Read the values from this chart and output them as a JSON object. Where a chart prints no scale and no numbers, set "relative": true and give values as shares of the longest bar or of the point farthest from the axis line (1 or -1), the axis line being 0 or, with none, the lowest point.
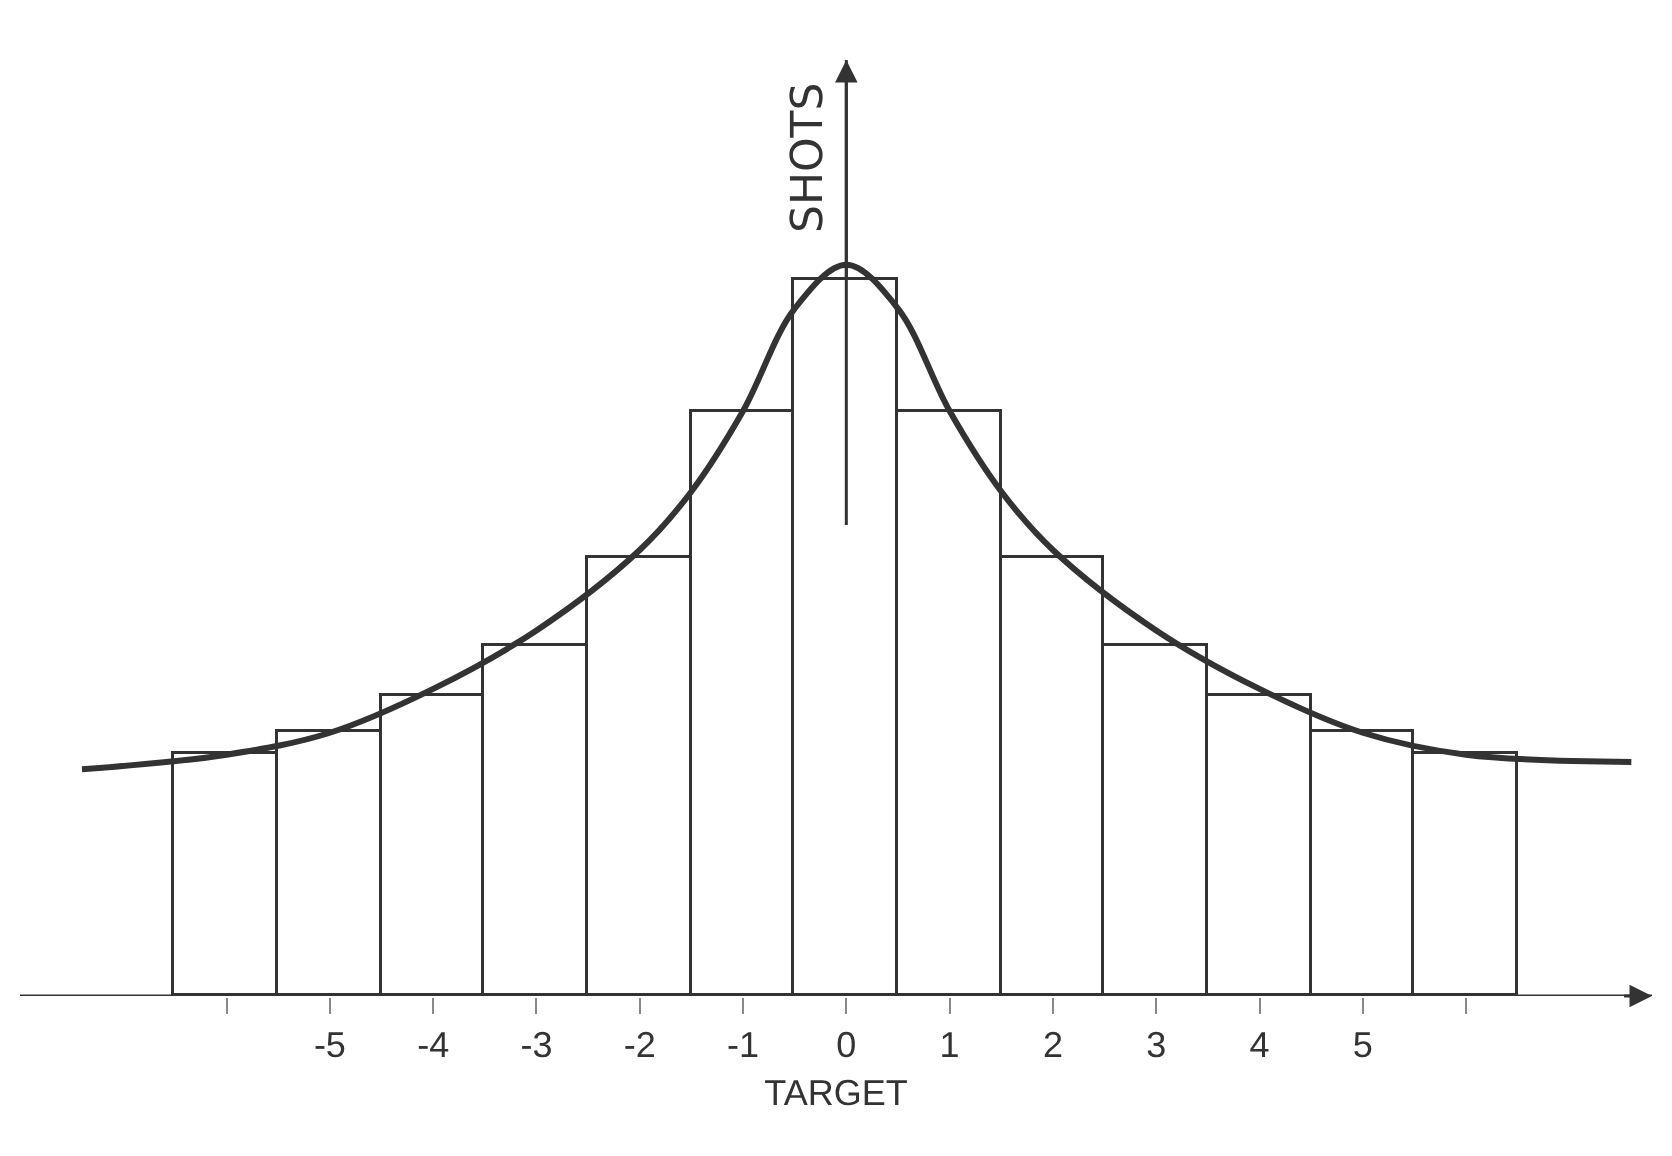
{
  "chart_data": {
    "type": "bar",
    "relative": true,
    "xlabel": "TARGET",
    "ylabel": "SHOTS",
    "x": [
      -6,
      -5,
      -4,
      -3,
      -2,
      -1,
      0,
      1,
      2,
      3,
      4,
      5,
      6
    ],
    "xlim": [
      -8,
      7.8
    ],
    "xticks": [
      {
        "value": -6,
        "label": null
      },
      -5,
      -4,
      -3,
      -2,
      -1,
      0,
      1,
      2,
      3,
      4,
      5,
      {
        "value": 6,
        "label": null
      }
    ],
    "series": [
      {
        "color": "#ffffff",
        "values": [
          0.33,
          0.36,
          0.41,
          0.48,
          0.6,
          0.8,
          0.98,
          0.8,
          0.6,
          0.48,
          0.41,
          0.36,
          0.33
        ]
      },
      {
        "type": "line",
        "color": "#333333",
        "x": [
          -7.4,
          -6,
          -5,
          -4,
          -3,
          -2,
          -1.5,
          -1,
          -0.5,
          0,
          0.5,
          1,
          1.5,
          2,
          3,
          4,
          5,
          6,
          7.6
        ],
        "values": [
          0.31,
          0.33,
          0.36,
          0.42,
          0.5,
          0.61,
          0.69,
          0.8,
          0.94,
          1,
          0.94,
          0.8,
          0.69,
          0.61,
          0.5,
          0.42,
          0.36,
          0.33,
          0.32
        ]
      }
    ]
  }
}
